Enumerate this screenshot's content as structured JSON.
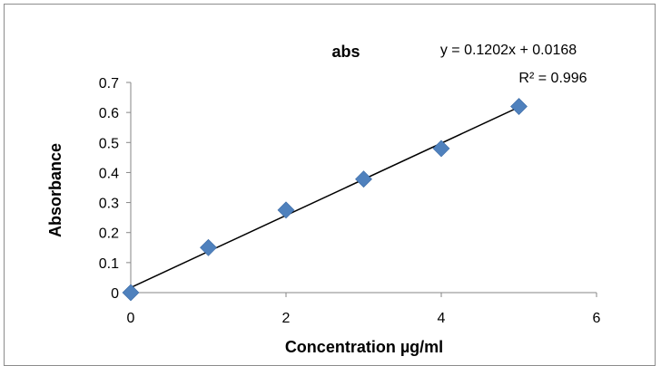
{
  "chart_data": {
    "type": "scatter",
    "title": "abs",
    "xlabel": "Concentration µg/ml",
    "ylabel": "Absorbance",
    "xlim": [
      0,
      6
    ],
    "ylim": [
      0,
      0.7
    ],
    "xticks": [
      "0",
      "2",
      "4",
      "6"
    ],
    "yticks": [
      "0",
      "0.1",
      "0.2",
      "0.3",
      "0.4",
      "0.5",
      "0.6",
      "0.7"
    ],
    "grid": false,
    "points": [
      {
        "x": 0,
        "y": 0
      },
      {
        "x": 1,
        "y": 0.15
      },
      {
        "x": 2,
        "y": 0.275
      },
      {
        "x": 3,
        "y": 0.378
      },
      {
        "x": 4,
        "y": 0.48
      },
      {
        "x": 5,
        "y": 0.62
      }
    ],
    "trendline": {
      "slope": 0.1202,
      "intercept": 0.0168
    },
    "equation": "y = 0.1202x + 0.0168",
    "r_squared": "R² = 0.996",
    "marker_color": "#4F81BD",
    "trendline_color": "#000000"
  }
}
